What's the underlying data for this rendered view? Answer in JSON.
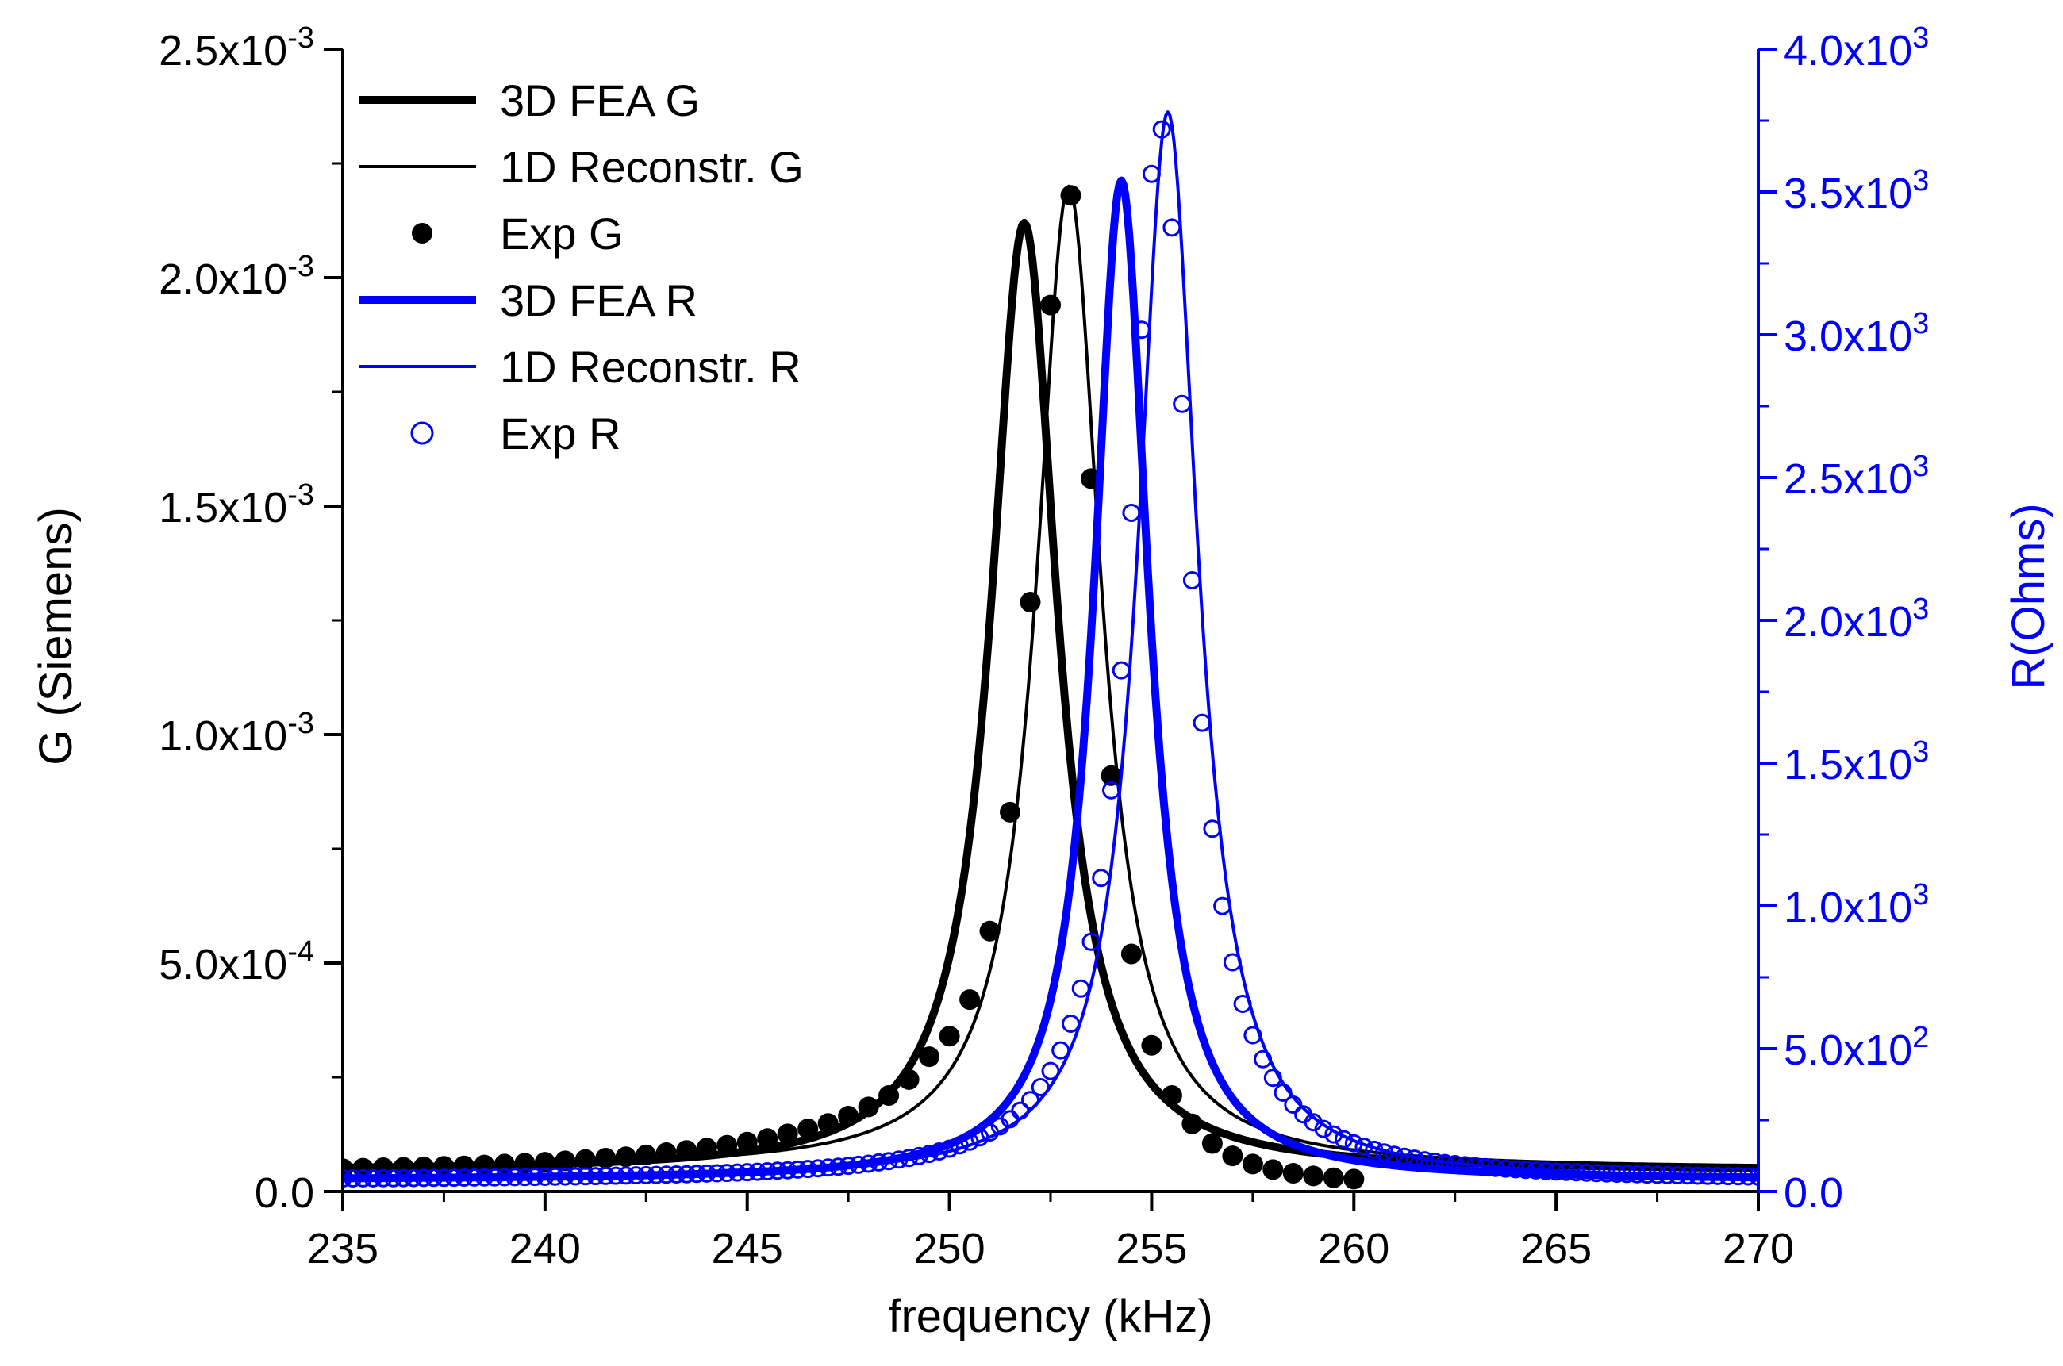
{
  "chart_data": {
    "type": "line",
    "xlabel": "frequency (kHz)",
    "ylabel_left": "G (Siemens)",
    "ylabel_right": "R(Ohms)",
    "xlim": [
      235,
      270
    ],
    "ylim_left": [
      0,
      0.0025
    ],
    "ylim_right": [
      0,
      4000
    ],
    "x_ticks": [
      {
        "value": 235,
        "label": "235"
      },
      {
        "value": 240,
        "label": "240"
      },
      {
        "value": 245,
        "label": "245"
      },
      {
        "value": 250,
        "label": "250"
      },
      {
        "value": 255,
        "label": "255"
      },
      {
        "value": 260,
        "label": "260"
      },
      {
        "value": 265,
        "label": "265"
      },
      {
        "value": 270,
        "label": "270"
      }
    ],
    "y_left_ticks": [
      {
        "value": 0,
        "base": "0.0",
        "exp": ""
      },
      {
        "value": 0.0005,
        "base": "5.0x10",
        "exp": "-4"
      },
      {
        "value": 0.001,
        "base": "1.0x10",
        "exp": "-3"
      },
      {
        "value": 0.0015,
        "base": "1.5x10",
        "exp": "-3"
      },
      {
        "value": 0.002,
        "base": "2.0x10",
        "exp": "-3"
      },
      {
        "value": 0.0025,
        "base": "2.5x10",
        "exp": "-3"
      }
    ],
    "y_right_ticks": [
      {
        "value": 0,
        "base": "0.0",
        "exp": ""
      },
      {
        "value": 500,
        "base": "5.0x10",
        "exp": "2"
      },
      {
        "value": 1000,
        "base": "1.0x10",
        "exp": "3"
      },
      {
        "value": 1500,
        "base": "1.5x10",
        "exp": "3"
      },
      {
        "value": 2000,
        "base": "2.0x10",
        "exp": "3"
      },
      {
        "value": 2500,
        "base": "2.5x10",
        "exp": "3"
      },
      {
        "value": 3000,
        "base": "3.0x10",
        "exp": "3"
      },
      {
        "value": 3500,
        "base": "3.5x10",
        "exp": "3"
      },
      {
        "value": 4000,
        "base": "4.0x10",
        "exp": "3"
      }
    ],
    "colors": {
      "g": "#000000",
      "r": "#0000ff"
    },
    "legend_position": "top-left",
    "series": [
      {
        "name": "3D FEA G",
        "axis": "left",
        "kind": "line",
        "weight": "thick",
        "color": "#000000",
        "peak_x": 251.85,
        "peak_y": 0.00212,
        "half_width": 1.0,
        "baseline": 4.5e-05,
        "x_range": [
          235,
          270
        ]
      },
      {
        "name": "1D Reconstr. G",
        "axis": "left",
        "kind": "line",
        "weight": "thin",
        "color": "#000000",
        "peak_x": 252.95,
        "peak_y": 0.0022,
        "half_width": 0.98,
        "baseline": 5e-05,
        "x_range": [
          235,
          270
        ]
      },
      {
        "name": "Exp G",
        "axis": "left",
        "kind": "marker",
        "marker": "filled-circle",
        "color": "#000000",
        "x": [
          235,
          235.5,
          236,
          236.5,
          237,
          237.5,
          238,
          238.5,
          239,
          239.5,
          240,
          240.5,
          241,
          241.5,
          242,
          242.5,
          243,
          243.5,
          244,
          244.5,
          245,
          245.5,
          246,
          246.5,
          247,
          247.5,
          248,
          248.5,
          249,
          249.5,
          250,
          250.5,
          251,
          251.5,
          252,
          252.5,
          253,
          253.5,
          254,
          254.5,
          255,
          255.5,
          256,
          256.5,
          257,
          257.5,
          258,
          258.5,
          259,
          259.5,
          260
        ],
        "y": [
          5e-05,
          5.1e-05,
          5.2e-05,
          5.3e-05,
          5.4e-05,
          5.5e-05,
          5.6e-05,
          5.8e-05,
          6e-05,
          6.2e-05,
          6.4e-05,
          6.7e-05,
          7e-05,
          7.3e-05,
          7.6e-05,
          8e-05,
          8.5e-05,
          9e-05,
          9.5e-05,
          0.000101,
          0.000108,
          0.000116,
          0.000126,
          0.000137,
          0.000149,
          0.000165,
          0.000185,
          0.00021,
          0.000245,
          0.000295,
          0.00034,
          0.00042,
          0.00057,
          0.00083,
          0.00129,
          0.00194,
          0.00218,
          0.00156,
          0.00091,
          0.00052,
          0.00032,
          0.00021,
          0.000148,
          0.000105,
          7.8e-05,
          6e-05,
          4.8e-05,
          4e-05,
          3.4e-05,
          3e-05,
          2.7e-05
        ]
      },
      {
        "name": "3D FEA R",
        "axis": "right",
        "kind": "line",
        "weight": "thick",
        "color": "#0000ff",
        "peak_x": 254.25,
        "peak_y": 3540,
        "half_width": 0.82,
        "baseline": 40,
        "x_range": [
          235,
          270
        ]
      },
      {
        "name": "1D Reconstr. R",
        "axis": "right",
        "kind": "line",
        "weight": "thin",
        "color": "#0000ff",
        "peak_x": 255.4,
        "peak_y": 3780,
        "half_width": 0.9,
        "baseline": 40,
        "x_range": [
          235,
          270
        ]
      },
      {
        "name": "Exp R",
        "axis": "right",
        "kind": "marker",
        "marker": "open-circle",
        "color": "#0000ff",
        "peak_x": 255.2,
        "peak_y": 3730,
        "half_width": 0.92,
        "baseline": 38,
        "x_start": 235,
        "x_end": 270,
        "step": 0.25
      }
    ]
  }
}
